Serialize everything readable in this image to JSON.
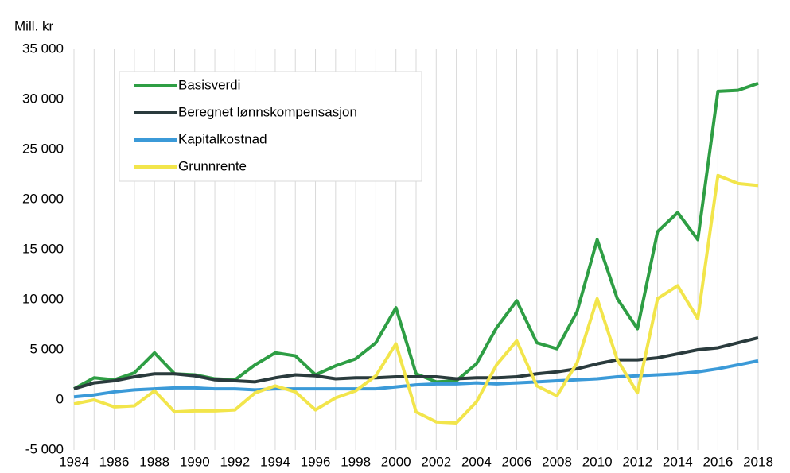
{
  "chart_data": {
    "type": "line",
    "y_label": "Mill. kr",
    "categories": [
      "1984",
      null,
      "1986",
      null,
      "1988",
      null,
      "1990",
      null,
      "1992",
      null,
      "1994",
      null,
      "1996",
      null,
      "1998",
      null,
      "2000",
      null,
      "2002",
      null,
      "2004",
      null,
      "2006",
      null,
      "2008",
      null,
      "2010",
      null,
      "2012",
      null,
      "2014",
      null,
      "2016",
      null,
      "2018"
    ],
    "series": [
      {
        "name": "Basisverdi",
        "color": "#2e9e44",
        "values": [
          1100,
          2200,
          2000,
          2700,
          4700,
          2600,
          2500,
          2100,
          2000,
          3500,
          4700,
          4400,
          2500,
          3400,
          4100,
          5700,
          9200,
          2600,
          1800,
          1900,
          3600,
          7200,
          9900,
          5700,
          5100,
          8800,
          16000,
          10100,
          7100,
          16800,
          18700,
          16000,
          30800,
          30900,
          31600
        ]
      },
      {
        "name": "Beregnet lønnskompensasjon",
        "color": "#2a3b3d",
        "values": [
          1100,
          1700,
          1900,
          2300,
          2600,
          2600,
          2400,
          2000,
          1900,
          1800,
          2200,
          2500,
          2400,
          2100,
          2200,
          2200,
          2300,
          2300,
          2300,
          2100,
          2200,
          2200,
          2300,
          2600,
          2800,
          3100,
          3600,
          4000,
          4000,
          4200,
          4600,
          5000,
          5200,
          5700,
          6200
        ]
      },
      {
        "name": "Kapitalkostnad",
        "color": "#3b9ad8",
        "values": [
          300,
          500,
          800,
          1000,
          1100,
          1200,
          1200,
          1100,
          1100,
          1000,
          1100,
          1100,
          1100,
          1100,
          1100,
          1100,
          1300,
          1500,
          1600,
          1600,
          1700,
          1600,
          1700,
          1800,
          1900,
          2000,
          2100,
          2300,
          2400,
          2500,
          2600,
          2800,
          3100,
          3500,
          3900
        ]
      },
      {
        "name": "Grunnrente",
        "color": "#f2e54b",
        "values": [
          -400,
          0,
          -700,
          -600,
          900,
          -1200,
          -1100,
          -1100,
          -1000,
          700,
          1400,
          800,
          -1000,
          200,
          900,
          2400,
          5600,
          -1200,
          -2200,
          -2300,
          -200,
          3500,
          5900,
          1400,
          400,
          3700,
          10100,
          4000,
          700,
          10100,
          11400,
          8100,
          22400,
          21600,
          21400
        ]
      }
    ],
    "ylim": [
      -5000,
      35000
    ],
    "yticks": [
      {
        "value": -5000,
        "label": "-5 000"
      },
      0,
      {
        "value": 5000,
        "label": "5 000"
      },
      {
        "value": 10000,
        "label": "10 000"
      },
      {
        "value": 15000,
        "label": "15 000"
      },
      {
        "value": 20000,
        "label": "20 000"
      },
      {
        "value": 25000,
        "label": "25 000"
      },
      {
        "value": 30000,
        "label": "30 000"
      },
      {
        "value": 35000,
        "label": "35 000"
      }
    ],
    "grid": "x",
    "legend": "upper left"
  }
}
